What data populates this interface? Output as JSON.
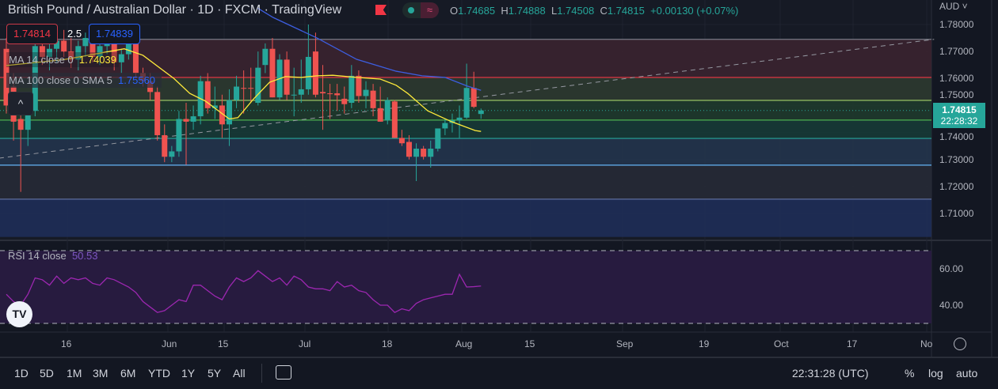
{
  "header": {
    "title": "British Pound / Australian Dollar · 1D · FXCM · TradingView",
    "ohlc": {
      "o_label": "O",
      "o": "1.74685",
      "h_label": "H",
      "h": "1.74888",
      "l_label": "L",
      "l": "1.74508",
      "c_label": "C",
      "c": "1.74815",
      "change": "+0.00130 (+0.07%)"
    },
    "wave_icon": "≈"
  },
  "trade": {
    "sell": "1.74814",
    "spread": "2.5",
    "buy": "1.74839"
  },
  "indicators": {
    "ma14_label": "MA 14 close 0",
    "ma14_value": "1.74039",
    "ma100_label": "MA 100 close 0 SMA 5",
    "ma100_value": "1.75560",
    "rsi_label": "RSI 14 close",
    "rsi_value": "50.53",
    "collapse": "^"
  },
  "logo": "TV",
  "price_axis": {
    "currency": "AUD ˅",
    "ticks": [
      "1.78000",
      "1.77000",
      "1.76000",
      "1.75000",
      "1.74000",
      "1.73000",
      "1.72000",
      "1.71000"
    ],
    "last_price": "1.74815",
    "countdown": "22:28:32"
  },
  "rsi_axis": {
    "ticks": [
      "60.00",
      "40.00"
    ]
  },
  "time_axis": {
    "labels": [
      "16",
      "Jun",
      "15",
      "Jul",
      "18",
      "Aug",
      "15",
      "Sep",
      "19",
      "Oct",
      "17",
      "No"
    ]
  },
  "toolbar": {
    "ranges": [
      "1D",
      "5D",
      "1M",
      "3M",
      "6M",
      "YTD",
      "1Y",
      "5Y",
      "All"
    ],
    "clock": "22:31:28 (UTC)",
    "percent": "%",
    "log": "log",
    "auto": "auto"
  },
  "colors": {
    "up": "#26a69a",
    "down": "#ef5350",
    "ma14": "#ffeb3b",
    "ma100": "#3d5ee0",
    "rsi": "#9c27b0"
  },
  "chart_data": {
    "type": "candlestick",
    "ylim": [
      1.7,
      1.785
    ],
    "levels": [
      {
        "price": 1.7745,
        "color": "#787b86",
        "fill": "#3a2430"
      },
      {
        "price": 1.7604,
        "color": "#f23645",
        "fill": "#2c3a30"
      },
      {
        "price": 1.7519,
        "color": "#a5d16a",
        "fill": "#1e3a2c"
      },
      {
        "price": 1.7446,
        "color": "#4caf50",
        "fill": "#163a36"
      },
      {
        "price": 1.7378,
        "color": "#26a69a",
        "fill": "#22344d"
      },
      {
        "price": 1.7279,
        "color": "#64b5f6",
        "fill": "#262a36"
      },
      {
        "price": 1.7153,
        "color": "#5d6c9c",
        "fill": "#1e2d58"
      }
    ],
    "range_bottom": 1.7013,
    "trendline": [
      [
        -1,
        1.7305
      ],
      [
        129,
        1.7745
      ]
    ],
    "candles": [
      [
        1.771,
        1.775,
        1.747,
        1.75
      ],
      [
        1.757,
        1.762,
        1.737,
        1.744
      ],
      [
        1.745,
        1.749,
        1.718,
        1.741
      ],
      [
        1.741,
        1.749,
        1.735,
        1.747
      ],
      [
        1.748,
        1.778,
        1.746,
        1.772
      ],
      [
        1.772,
        1.779,
        1.765,
        1.768
      ],
      [
        1.768,
        1.776,
        1.763,
        1.771
      ],
      [
        1.771,
        1.779,
        1.766,
        1.774
      ],
      [
        1.774,
        1.778,
        1.768,
        1.77
      ],
      [
        1.77,
        1.775,
        1.764,
        1.767
      ],
      [
        1.767,
        1.774,
        1.763,
        1.772
      ],
      [
        1.772,
        1.777,
        1.768,
        1.775
      ],
      [
        1.775,
        1.779,
        1.766,
        1.768
      ],
      [
        1.768,
        1.774,
        1.765,
        1.772
      ],
      [
        1.772,
        1.778,
        1.769,
        1.774
      ],
      [
        1.774,
        1.776,
        1.763,
        1.766
      ],
      [
        1.766,
        1.771,
        1.762,
        1.769
      ],
      [
        1.769,
        1.776,
        1.767,
        1.774
      ],
      [
        1.774,
        1.775,
        1.76,
        1.762
      ],
      [
        1.762,
        1.764,
        1.757,
        1.759
      ],
      [
        1.759,
        1.762,
        1.752,
        1.755
      ],
      [
        1.755,
        1.757,
        1.737,
        1.739
      ],
      [
        1.739,
        1.743,
        1.729,
        1.731
      ],
      [
        1.731,
        1.735,
        1.729,
        1.733
      ],
      [
        1.733,
        1.748,
        1.731,
        1.745
      ],
      [
        1.745,
        1.751,
        1.728,
        1.744
      ],
      [
        1.744,
        1.75,
        1.741,
        1.746
      ],
      [
        1.746,
        1.761,
        1.743,
        1.759
      ],
      [
        1.759,
        1.762,
        1.747,
        1.749
      ],
      [
        1.749,
        1.757,
        1.745,
        1.75
      ],
      [
        1.75,
        1.754,
        1.738,
        1.743
      ],
      [
        1.743,
        1.756,
        1.735,
        1.752
      ],
      [
        1.752,
        1.761,
        1.749,
        1.757
      ],
      [
        1.7565,
        1.763,
        1.747,
        1.7562
      ],
      [
        1.7565,
        1.764,
        1.751,
        1.7562
      ],
      [
        1.751,
        1.77,
        1.75,
        1.764
      ],
      [
        1.765,
        1.773,
        1.762,
        1.771
      ],
      [
        1.771,
        1.775,
        1.753,
        1.753
      ],
      [
        1.753,
        1.769,
        1.752,
        1.767
      ],
      [
        1.767,
        1.77,
        1.752,
        1.754
      ],
      [
        1.754,
        1.764,
        1.746,
        1.754
      ],
      [
        1.754,
        1.767,
        1.751,
        1.756
      ],
      [
        1.756,
        1.78,
        1.754,
        1.768
      ],
      [
        1.77,
        1.777,
        1.753,
        1.754
      ],
      [
        1.755,
        1.765,
        1.741,
        1.7545
      ],
      [
        1.7545,
        1.758,
        1.745,
        1.7542
      ],
      [
        1.7545,
        1.758,
        1.748,
        1.7538
      ],
      [
        1.7525,
        1.757,
        1.747,
        1.7505
      ],
      [
        1.751,
        1.765,
        1.749,
        1.761
      ],
      [
        1.761,
        1.763,
        1.751,
        1.7535
      ],
      [
        1.7535,
        1.759,
        1.749,
        1.7558
      ],
      [
        1.7555,
        1.758,
        1.746,
        1.749
      ],
      [
        1.749,
        1.757,
        1.744,
        1.744
      ],
      [
        1.7445,
        1.753,
        1.743,
        1.752
      ],
      [
        1.7515,
        1.752,
        1.738,
        1.738
      ],
      [
        1.738,
        1.741,
        1.735,
        1.736
      ],
      [
        1.7365,
        1.739,
        1.73,
        1.731
      ],
      [
        1.731,
        1.736,
        1.722,
        1.734
      ],
      [
        1.734,
        1.735,
        1.73,
        1.731
      ],
      [
        1.731,
        1.737,
        1.727,
        1.734
      ],
      [
        1.734,
        1.741,
        1.733,
        1.7415
      ],
      [
        1.7415,
        1.745,
        1.739,
        1.7435
      ],
      [
        1.7435,
        1.747,
        1.74,
        1.7445
      ],
      [
        1.7445,
        1.75,
        1.738,
        1.7455
      ],
      [
        1.7455,
        1.7655,
        1.745,
        1.7565
      ],
      [
        1.7565,
        1.7625,
        1.749,
        1.7495
      ],
      [
        1.74685,
        1.74888,
        1.74508,
        1.74815
      ]
    ],
    "ma14": [
      [
        0,
        1.7648
      ],
      [
        8,
        1.767
      ],
      [
        16.4,
        1.771
      ],
      [
        19,
        1.7686
      ],
      [
        23.3,
        1.76
      ],
      [
        25.5,
        1.7545
      ],
      [
        27.7,
        1.7516
      ],
      [
        31,
        1.745
      ],
      [
        32.2,
        1.7455
      ],
      [
        34.4,
        1.7525
      ],
      [
        36.6,
        1.7586
      ],
      [
        38.8,
        1.7607
      ],
      [
        41,
        1.7604
      ],
      [
        43.2,
        1.761
      ],
      [
        45.4,
        1.7612
      ],
      [
        48.7,
        1.7604
      ],
      [
        52,
        1.7598
      ],
      [
        54.2,
        1.7575
      ],
      [
        55.8,
        1.7545
      ],
      [
        58.6,
        1.748
      ],
      [
        61.9,
        1.744
      ],
      [
        65.2,
        1.7407
      ],
      [
        66,
        1.7404
      ]
    ],
    "ma100": [
      [
        35,
        1.786
      ],
      [
        37.1,
        1.7826
      ],
      [
        43.2,
        1.775
      ],
      [
        48.7,
        1.7671
      ],
      [
        54.2,
        1.7627
      ],
      [
        57.8,
        1.761
      ],
      [
        61,
        1.7604
      ],
      [
        64.1,
        1.7572
      ],
      [
        66,
        1.7556
      ]
    ],
    "rsi": [
      46,
      42,
      40,
      46,
      55,
      54,
      51,
      56,
      52,
      55,
      54,
      55,
      52,
      51,
      55,
      54,
      52,
      50,
      47,
      42,
      39,
      36,
      37,
      40,
      43,
      42,
      51,
      51,
      48,
      45,
      43,
      50,
      55,
      53,
      55,
      59,
      56,
      53,
      55,
      51,
      56,
      54,
      50,
      49,
      49,
      48,
      53,
      50,
      51,
      48,
      47,
      43,
      40,
      40,
      36,
      38,
      37,
      41,
      43,
      44,
      45,
      46,
      46,
      57,
      50,
      50.2,
      50.53
    ],
    "rsi_bands": [
      70,
      30
    ],
    "rsi_ylim": [
      25,
      75
    ]
  }
}
